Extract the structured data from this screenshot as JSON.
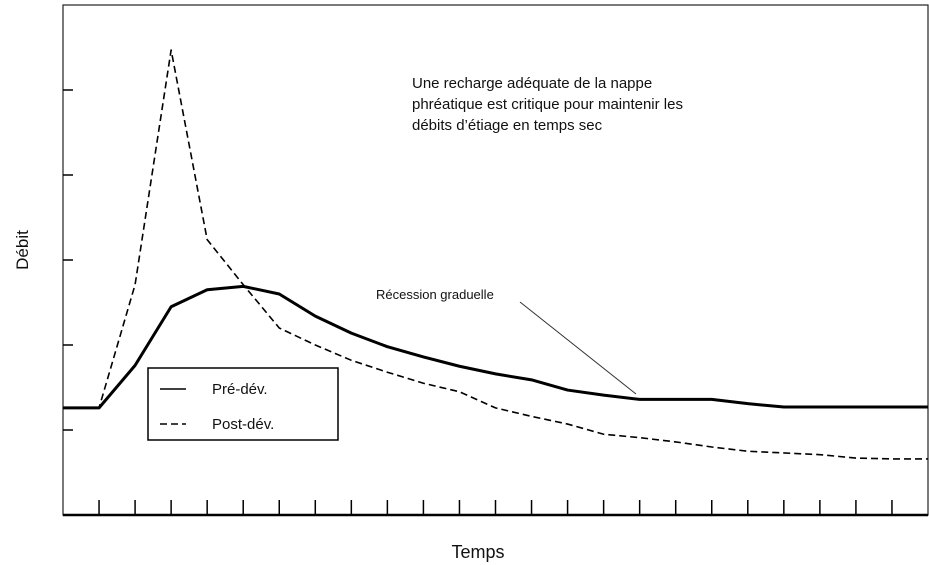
{
  "chart_data": {
    "type": "line",
    "x_label": "Temps",
    "y_label": "Débit",
    "annotations": [
      "Une recharge adéquate de la nappe",
      "phréatique est critique pour maintenir les",
      "débits d’étiage en temps sec",
      "Récession graduelle"
    ],
    "x": [
      0,
      1,
      2,
      3,
      4,
      5,
      6,
      7,
      8,
      9,
      10,
      11,
      12,
      13,
      14,
      15,
      16,
      17,
      18,
      19,
      20,
      21,
      22,
      23,
      24
    ],
    "series": [
      {
        "name": "Pré-dév.",
        "color": "#000000",
        "dash": "solid",
        "values": [
          1.26,
          1.26,
          1.76,
          2.45,
          2.65,
          2.69,
          2.6,
          2.34,
          2.14,
          1.98,
          1.86,
          1.75,
          1.66,
          1.59,
          1.47,
          1.41,
          1.36,
          1.36,
          1.36,
          1.31,
          1.27,
          1.27,
          1.27,
          1.27,
          1.27
        ]
      },
      {
        "name": "Post-dév.",
        "color": "#000000",
        "dash": "dashed",
        "values": [
          1.26,
          1.26,
          2.71,
          5.47,
          3.24,
          2.71,
          2.2,
          2.0,
          1.82,
          1.68,
          1.55,
          1.45,
          1.26,
          1.16,
          1.07,
          0.95,
          0.91,
          0.86,
          0.8,
          0.75,
          0.73,
          0.71,
          0.67,
          0.66,
          0.66
        ]
      }
    ],
    "xlim": [
      0,
      24
    ],
    "ylim": [
      0,
      6
    ],
    "xticks": [
      1,
      2,
      3,
      4,
      5,
      6,
      7,
      8,
      9,
      10,
      11,
      12,
      13,
      14,
      15,
      16,
      17,
      18,
      19,
      20,
      21,
      22,
      23
    ],
    "yticks": [
      1,
      2,
      3,
      4,
      5
    ],
    "grid": false,
    "legend": "lower left"
  }
}
